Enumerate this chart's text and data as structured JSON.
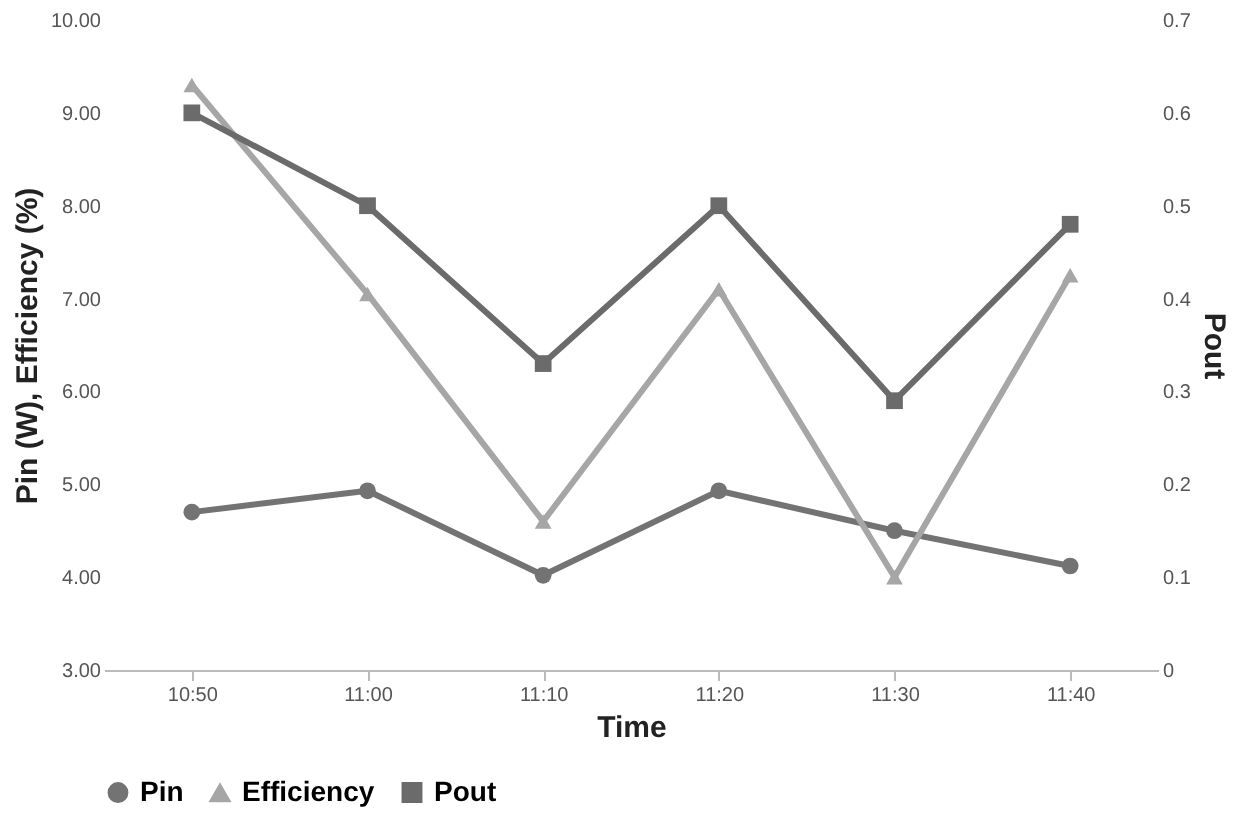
{
  "chart_data": {
    "type": "line",
    "xlabel": "Time",
    "ylabel": "Pin (W), Efficiency (%)",
    "y2label": "Pout",
    "categories": [
      "10:50",
      "11:00",
      "11:10",
      "11:20",
      "11:30",
      "11:40"
    ],
    "series": [
      {
        "name": "Pin",
        "color": "#737373",
        "marker": "circle",
        "values": [
          4.7,
          4.93,
          4.02,
          4.93,
          4.5,
          4.12
        ]
      },
      {
        "name": "Efficiency",
        "color": "#a6a6a6",
        "marker": "triangle",
        "values": [
          9.3,
          7.05,
          4.6,
          7.1,
          4.0,
          7.25
        ]
      },
      {
        "name": "Pout",
        "color": "#6b6b6b",
        "marker": "square",
        "axis": "y2",
        "values": [
          0.6,
          0.5,
          0.33,
          0.5,
          0.29,
          0.48
        ]
      }
    ],
    "ylim": [
      3,
      10
    ],
    "yticks": [
      {
        "value": 3,
        "label": "3.00"
      },
      {
        "value": 4,
        "label": "4.00"
      },
      {
        "value": 5,
        "label": "5.00"
      },
      {
        "value": 6,
        "label": "6.00"
      },
      {
        "value": 7,
        "label": "7.00"
      },
      {
        "value": 8,
        "label": "8.00"
      },
      {
        "value": 9,
        "label": "9.00"
      },
      {
        "value": 10,
        "label": "10.00"
      }
    ],
    "y2lim": [
      0,
      0.7
    ],
    "y2ticks": [
      0,
      0.1,
      0.2,
      0.3,
      0.4,
      0.5,
      0.6,
      0.7
    ],
    "legend": "bottom",
    "grid": false
  }
}
